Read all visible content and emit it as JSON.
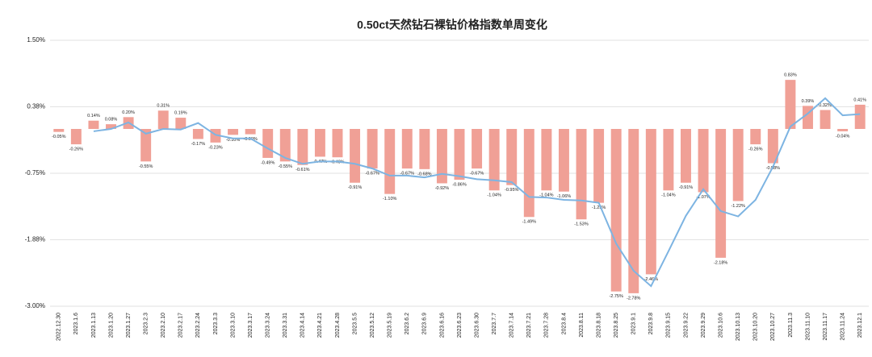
{
  "chart_data": {
    "type": "bar",
    "title": "0.50ct天然钻石裸钻价格指数单周变化",
    "categories": [
      "2022.12.30",
      "2023.1.6",
      "2023.1.13",
      "2023.1.20",
      "2023.1.27",
      "2023.2.3",
      "2023.2.10",
      "2023.2.17",
      "2023.2.24",
      "2023.3.3",
      "2023.3.10",
      "2023.3.17",
      "2023.3.24",
      "2023.3.31",
      "2023.4.14",
      "2023.4.21",
      "2023.4.28",
      "2023.5.5",
      "2023.5.12",
      "2023.5.19",
      "2023.6.2",
      "2023.6.9",
      "2023.6.16",
      "2023.6.23",
      "2023.6.30",
      "2023.7.7",
      "2023.7.14",
      "2023.7.21",
      "2023.7.28",
      "2023.8.4",
      "2023.8.11",
      "2023.8.18",
      "2023.8.25",
      "2023.9.1",
      "2023.9.8",
      "2023.9.15",
      "2023.9.22",
      "2023.9.29",
      "2023.10.6",
      "2023.10.13",
      "2023.10.20",
      "2023.10.27",
      "2023.11.3",
      "2023.11.10",
      "2023.11.17",
      "2023.11.24",
      "2023.12.1"
    ],
    "series": [
      {
        "type": "bar",
        "color": "#f0a096",
        "values": [
          -0.05,
          -0.26,
          0.14,
          0.08,
          0.2,
          -0.55,
          0.31,
          0.19,
          -0.17,
          -0.23,
          -0.1,
          -0.09,
          -0.49,
          -0.55,
          -0.61,
          -0.47,
          -0.48,
          -0.91,
          -0.67,
          -1.1,
          -0.67,
          -0.68,
          -0.92,
          -0.86,
          -0.67,
          -1.04,
          -0.95,
          -1.49,
          -1.04,
          -1.06,
          -1.53,
          -1.25,
          -2.75,
          -2.78,
          -2.46,
          -1.04,
          -0.91,
          -1.07,
          -2.18,
          -1.22,
          -0.26,
          -0.58,
          0.83,
          0.39,
          0.32,
          -0.04,
          0.41
        ],
        "value_labels": [
          "-0.05%",
          "-0.26%",
          "0.14%",
          "0.08%",
          "0.20%",
          "-0.55%",
          "0.31%",
          "0.19%",
          "-0.17%",
          "-0.23%",
          "-0.10%",
          "-0.09%",
          "-0.49%",
          "-0.55%",
          "-0.61%",
          "-0.47%",
          "-0.48%",
          "-0.91%",
          "-0.67%",
          "-1.10%",
          "-0.67%",
          "-0.68%",
          "-0.92%",
          "-0.86%",
          "-0.67%",
          "-1.04%",
          "-0.95%",
          "-1.49%",
          "-1.04%",
          "-1.06%",
          "-1.53%",
          "-1.25%",
          "-2.75%",
          "-2.78%",
          "-2.46%",
          "-1.04%",
          "-0.91%",
          "-1.07%",
          "-2.18%",
          "-1.22%",
          "-0.26%",
          "-0.58%",
          "0.83%",
          "0.39%",
          "0.32%",
          "-0.04%",
          "0.41%"
        ]
      },
      {
        "type": "line",
        "color": "#7db4e2",
        "values": [
          null,
          null,
          -0.04,
          0.0,
          0.11,
          -0.08,
          0.0,
          -0.01,
          0.1,
          -0.1,
          -0.16,
          -0.16,
          -0.33,
          -0.49,
          -0.59,
          -0.55,
          -0.55,
          -0.59,
          -0.67,
          -0.79,
          -0.79,
          -0.82,
          -0.76,
          -0.8,
          -0.85,
          -0.87,
          -0.9,
          -1.15,
          -1.16,
          -1.2,
          -1.21,
          -1.25,
          -1.94,
          -2.4,
          -2.66,
          -2.07,
          -1.47,
          -1.02,
          -1.39,
          -1.48,
          -1.2,
          -0.64,
          0.04,
          0.26,
          0.52,
          0.23,
          0.25
        ]
      }
    ],
    "ylim": [
      -3.0,
      1.5
    ],
    "yticks": [
      {
        "value": 1.5,
        "label": "1.50%"
      },
      {
        "value": 0.375,
        "label": "0.38%"
      },
      {
        "value": -0.75,
        "label": "-0.75%"
      },
      {
        "value": -1.875,
        "label": "-1.88%"
      },
      {
        "value": -3.0,
        "label": "-3.00%"
      }
    ],
    "grid": true
  }
}
